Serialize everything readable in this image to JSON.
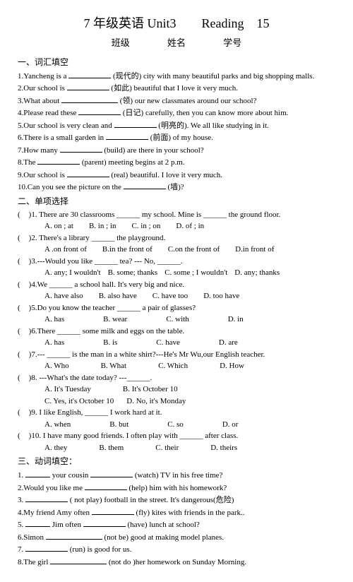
{
  "title": "7 年级英语 Unit3　　Reading　15",
  "header": {
    "class": "班级",
    "name": "姓名",
    "sid": "学号"
  },
  "s1": {
    "h": "一、词汇填空",
    "q1a": "1.Yancheng is a ",
    "q1b": " (现代的) city with many beautiful parks and big shopping malls.",
    "q2a": "2.Our school is ",
    "q2b": " (如此) beautiful that I love it very much.",
    "q3a": "3.What about ",
    "q3b": " (领) our new classmates around our school?",
    "q4a": "4.Please read these ",
    "q4b": " (日记) carefully, then you can know more about him.",
    "q5a": "5.Our school is very clean and ",
    "q5b": " (明亮的). We all like studying in it.",
    "q6a": "6.There is a small garden in ",
    "q6b": " (前面) of my house.",
    "q7a": "7.How many ",
    "q7b": " (build) are there in your school?",
    "q8a": "8.The ",
    "q8b": " (parent) meeting begins at 2 p.m.",
    "q9a": "9.Our school is ",
    "q9b": " (real) beautiful. I love it very much.",
    "q10a": "10.Can you see the picture on the ",
    "q10b": " (墙)?"
  },
  "s2": {
    "h": "二、单项选择",
    "q1": ")1. There are 30 classrooms ______ my school. Mine is ______ the ground floor.",
    "q1o": {
      "a": "A. on ; at",
      "b": "B. in ; in",
      "c": "C. in ; on",
      "d": "D. of ; in"
    },
    "q2": ")2. There's a library ______ the playground.",
    "q2o": {
      "a": "A .on front of",
      "b": "B.in the front of",
      "c": "C.on the front of",
      "d": "D.in front of"
    },
    "q3": ")3.---Would you like ______ tea? --- No, ______.",
    "q3o": {
      "a": "A. any; I wouldn't",
      "b": "B. some; thanks",
      "c": "C. some ; I wouldn't",
      "d": "D. any; thanks"
    },
    "q4": ")4.We ______ a school hall. It's very big and nice.",
    "q4o": {
      "a": "A. have also",
      "b": "B. also have",
      "c": "C. have too",
      "d": "D. too have"
    },
    "q5": ")5.Do you know the teacher ______ a pair of glasses?",
    "q5o": {
      "a": "A. has",
      "b": "B. wear",
      "c": "C. with",
      "d": "D. in"
    },
    "q6": ")6.There ______ some milk and eggs on the table.",
    "q6o": {
      "a": "A. has",
      "b": "B. is",
      "c": "C. have",
      "d": "D. are"
    },
    "q7": ")7.--- ______ is the man in a white shirt?---He's Mr Wu,our English teacher.",
    "q7o": {
      "a": "A. Who",
      "b": "B. What",
      "c": "C. Which",
      "d": "D. How"
    },
    "q8": ")8. ---What's the date today? ---______.",
    "q8o": {
      "a": "A. It's Tuesday",
      "b": "B. It's October 10",
      "c": "C. Yes, it's October 10",
      "d": "D. No, it's Monday"
    },
    "q9": ")9. I like English, ______ I work hard at it.",
    "q9o": {
      "a": "A. when",
      "b": "B. but",
      "c": "C. so",
      "d": "D. or"
    },
    "q10": ")10. I have many good friends. I often play with ______ after class.",
    "q10o": {
      "a": "A. they",
      "b": "B. them",
      "c": "C. their",
      "d": "D. theirs"
    }
  },
  "s3": {
    "h": "三、动词填空：",
    "q1a": "1. ",
    "q1b": " your cousin ",
    "q1c": " (watch) TV in his free time?",
    "q2a": "2.Would you like me ",
    "q2b": " (help) him with his homework?",
    "q3a": "3. ",
    "q3b": " ( not play) football in the street. It's dangerous(危险)",
    "q4a": "4.My friend Amy often ",
    "q4b": " (fly) kites with friends in the park..",
    "q5a": "5. ",
    "q5b": " Jim often ",
    "q5c": " (have) lunch at school?",
    "q6a": "6.Simon ",
    "q6b": " (not be) good at making model planes.",
    "q7a": "7. ",
    "q7b": " (run) is good for us.",
    "q8a": "8.The girl ",
    "q8b": " (not do )her homework on Sunday Morning."
  }
}
